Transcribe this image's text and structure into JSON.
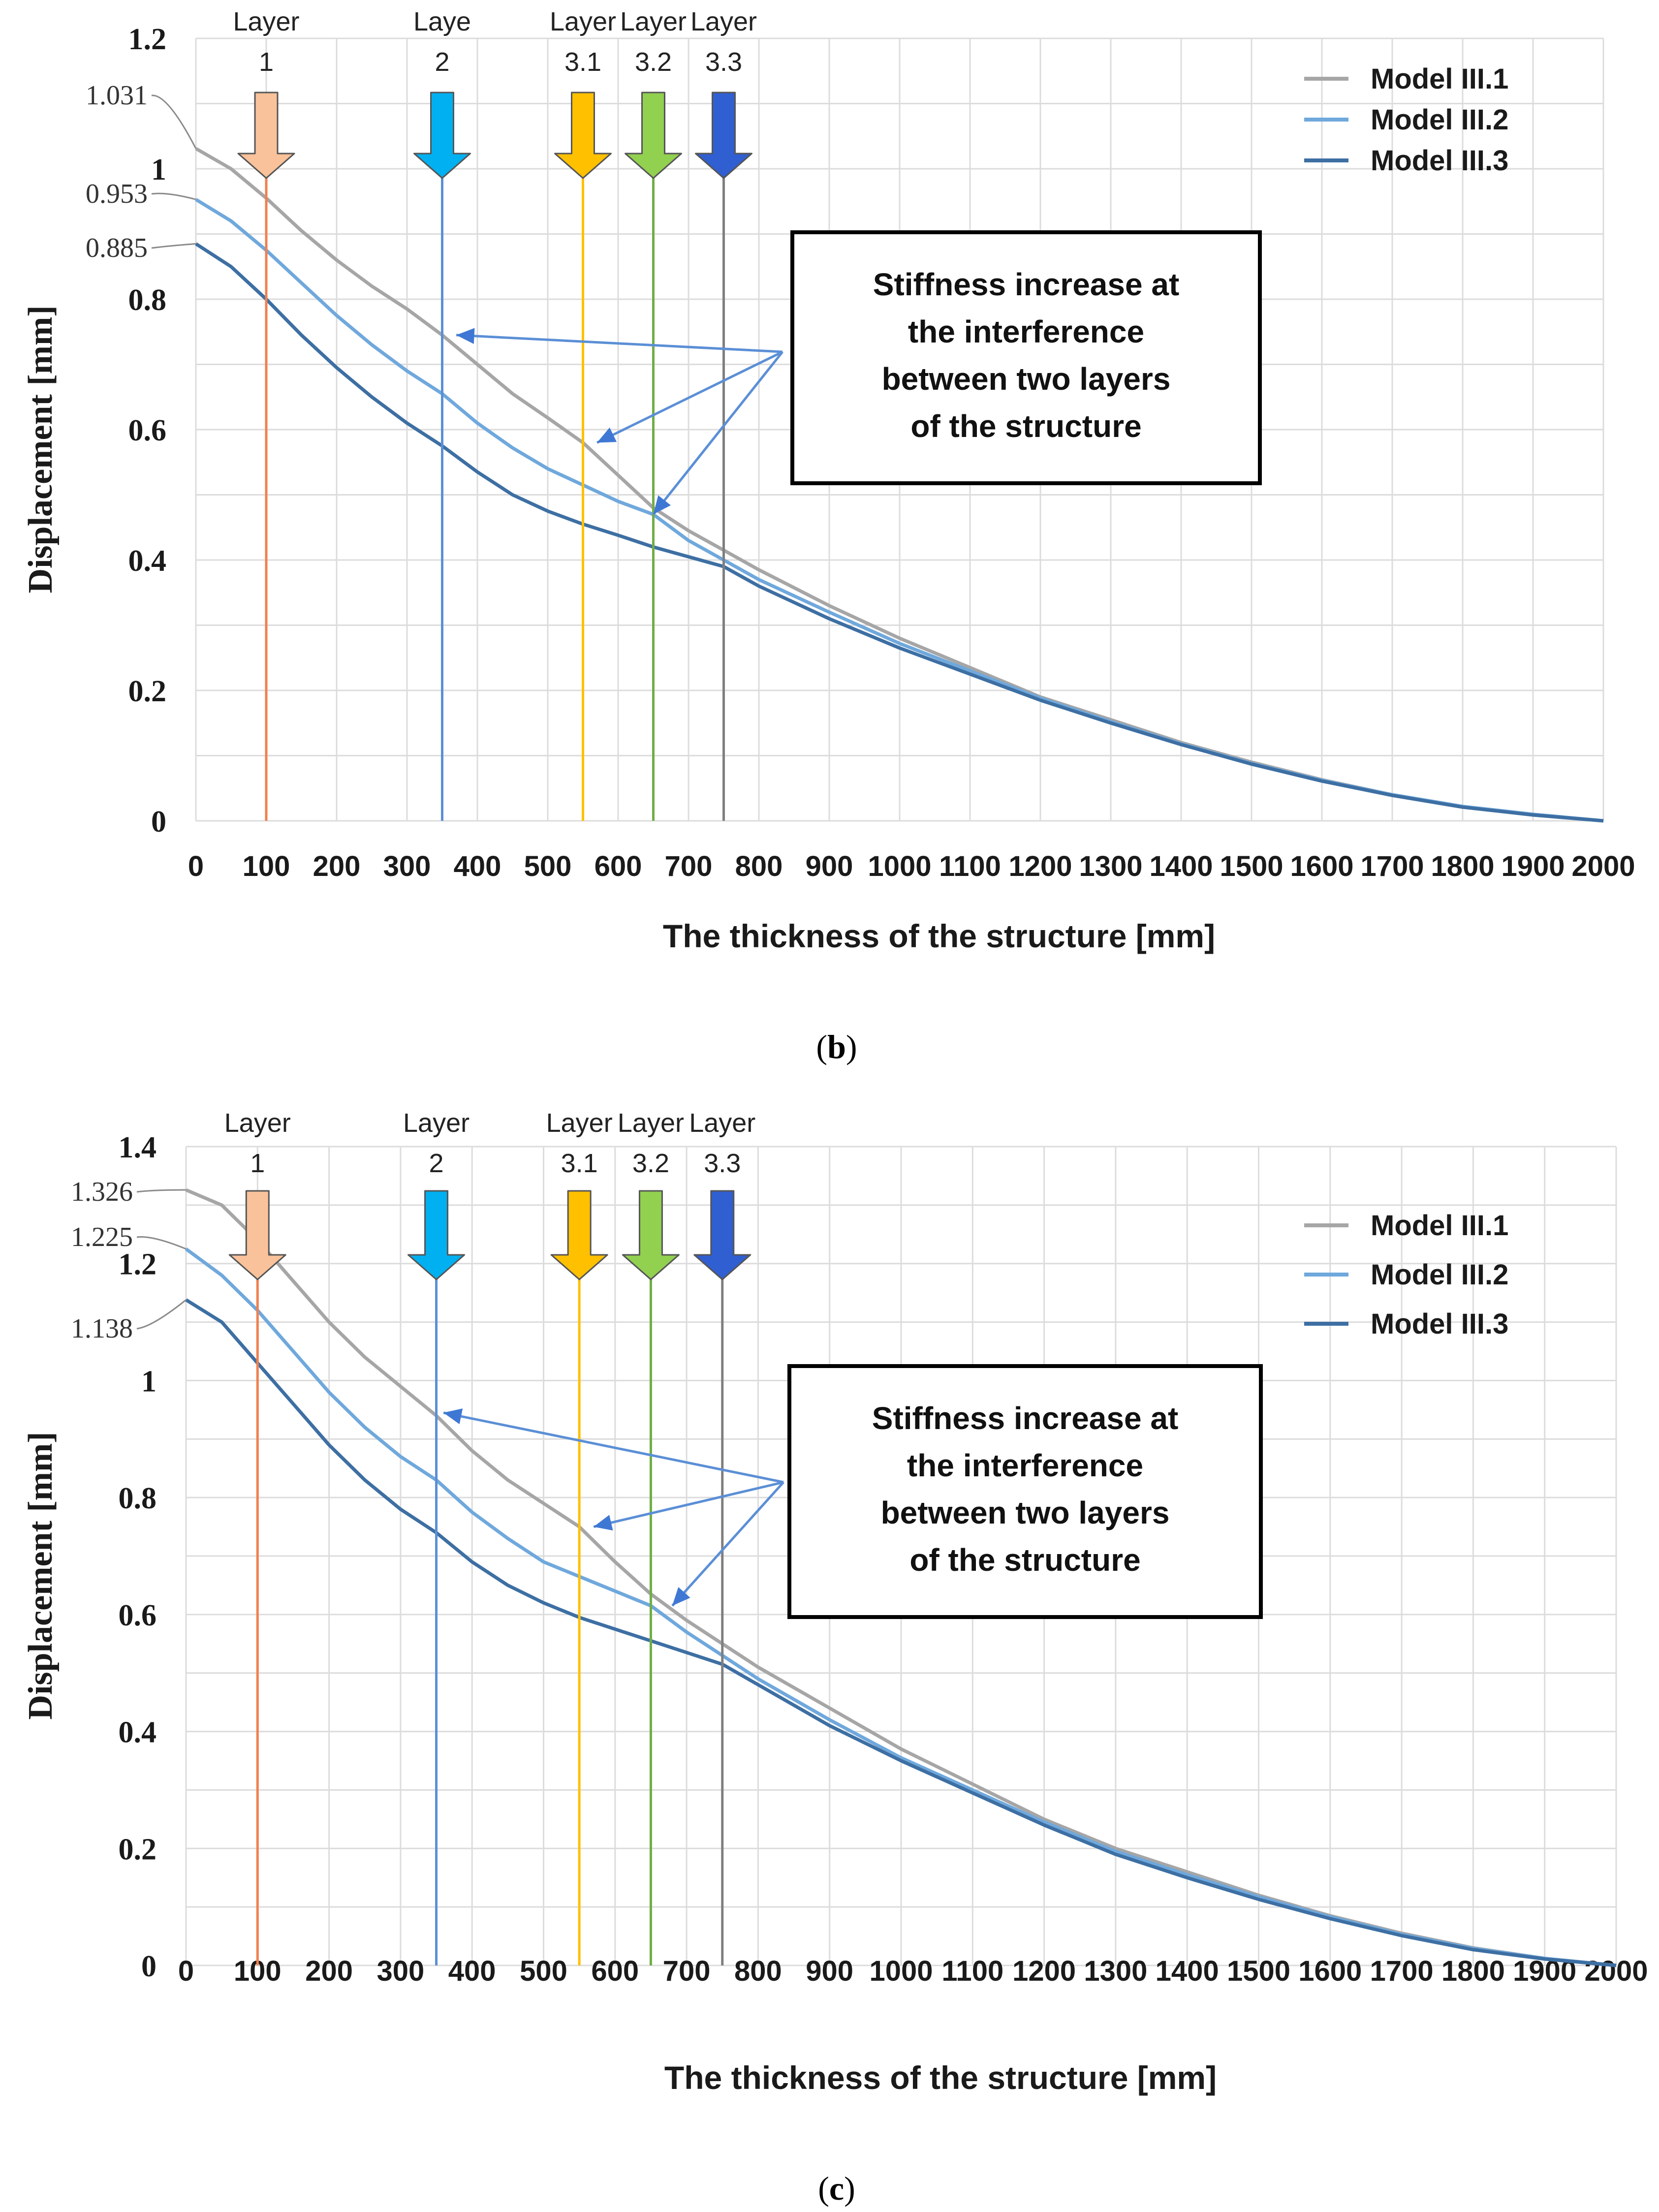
{
  "figure": {
    "panels": [
      {
        "caption": "(b)",
        "caption_letter": "b"
      },
      {
        "caption": "(c)",
        "caption_letter": "c"
      }
    ]
  },
  "chart_data": [
    {
      "type": "line",
      "panel": "b",
      "title": "",
      "xlabel": "The thickness of the structure [mm]",
      "ylabel": "Displacement [mm]",
      "xlim": [
        0,
        2000
      ],
      "ylim": [
        0,
        1.2
      ],
      "xticks": [
        0,
        100,
        200,
        300,
        400,
        500,
        600,
        700,
        800,
        900,
        1000,
        1100,
        1200,
        1300,
        1400,
        1500,
        1600,
        1700,
        1800,
        1900,
        2000
      ],
      "yticks": [
        0,
        0.2,
        0.4,
        0.6,
        0.8,
        1,
        1.2
      ],
      "ytick_labels": [
        "0",
        "0.2",
        "0.4",
        "0.6",
        "0.8",
        "1",
        "1.2"
      ],
      "grid": true,
      "legend_position": "top-right",
      "series": [
        {
          "name": "Model III.1",
          "color": "#a6a6a6",
          "x": [
            0,
            50,
            100,
            150,
            200,
            250,
            300,
            350,
            400,
            450,
            500,
            550,
            600,
            650,
            700,
            750,
            800,
            900,
            1000,
            1100,
            1200,
            1300,
            1400,
            1500,
            1600,
            1700,
            1800,
            1900,
            2000
          ],
          "y": [
            1.031,
            1.0,
            0.955,
            0.905,
            0.86,
            0.82,
            0.785,
            0.745,
            0.7,
            0.655,
            0.618,
            0.58,
            0.53,
            0.48,
            0.445,
            0.415,
            0.385,
            0.33,
            0.28,
            0.235,
            0.19,
            0.155,
            0.12,
            0.09,
            0.063,
            0.04,
            0.022,
            0.01,
            0.0
          ]
        },
        {
          "name": "Model III.2",
          "color": "#6fa8dc",
          "x": [
            0,
            50,
            100,
            150,
            200,
            250,
            300,
            350,
            400,
            450,
            500,
            550,
            600,
            650,
            700,
            750,
            800,
            900,
            1000,
            1100,
            1200,
            1300,
            1400,
            1500,
            1600,
            1700,
            1800,
            1900,
            2000
          ],
          "y": [
            0.953,
            0.92,
            0.875,
            0.825,
            0.775,
            0.73,
            0.69,
            0.655,
            0.61,
            0.572,
            0.54,
            0.515,
            0.49,
            0.47,
            0.43,
            0.4,
            0.37,
            0.32,
            0.272,
            0.23,
            0.188,
            0.152,
            0.118,
            0.088,
            0.062,
            0.04,
            0.022,
            0.01,
            0.0
          ]
        },
        {
          "name": "Model III.3",
          "color": "#3d6fa3",
          "x": [
            0,
            50,
            100,
            150,
            200,
            250,
            300,
            350,
            400,
            450,
            500,
            550,
            600,
            650,
            700,
            750,
            800,
            900,
            1000,
            1100,
            1200,
            1300,
            1400,
            1500,
            1600,
            1700,
            1800,
            1900,
            2000
          ],
          "y": [
            0.885,
            0.85,
            0.8,
            0.745,
            0.695,
            0.65,
            0.61,
            0.575,
            0.535,
            0.5,
            0.475,
            0.455,
            0.438,
            0.42,
            0.405,
            0.39,
            0.36,
            0.31,
            0.265,
            0.225,
            0.185,
            0.15,
            0.117,
            0.087,
            0.061,
            0.039,
            0.021,
            0.009,
            0.0
          ]
        }
      ],
      "start_value_labels": [
        "1.031",
        "0.953",
        "0.885"
      ],
      "layers": [
        {
          "label_line1": "Layer",
          "label_line2": "1",
          "x": 100,
          "color": "#f08050",
          "arrow_color": "#f9c29a"
        },
        {
          "label_line1": "Laye",
          "label_line2": "2",
          "x": 350,
          "color": "#5b8fd6",
          "arrow_color": "#00b0f0"
        },
        {
          "label_line1": "Layer",
          "label_line2": "3.1",
          "x": 550,
          "color": "#ffc000",
          "arrow_color": "#ffc000"
        },
        {
          "label_line1": "Layer",
          "label_line2": "3.2",
          "x": 650,
          "color": "#70ad47",
          "arrow_color": "#92d050"
        },
        {
          "label_line1": "Layer",
          "label_line2": "3.3",
          "x": 750,
          "color": "#7f7f7f",
          "arrow_color": "#2f5fd0"
        }
      ],
      "annotation": {
        "lines": [
          "Stiffness increase at",
          "the interference",
          "between two layers",
          "of the structure"
        ],
        "targets": [
          [
            370,
            0.745
          ],
          [
            570,
            0.58
          ],
          [
            650,
            0.47
          ]
        ]
      }
    },
    {
      "type": "line",
      "panel": "c",
      "title": "",
      "xlabel": "The thickness of the structure [mm]",
      "ylabel": "Displacement [mm]",
      "xlim": [
        0,
        2000
      ],
      "ylim": [
        0,
        1.4
      ],
      "xticks": [
        0,
        100,
        200,
        300,
        400,
        500,
        600,
        700,
        800,
        900,
        1000,
        1100,
        1200,
        1300,
        1400,
        1500,
        1600,
        1700,
        1800,
        1900,
        2000
      ],
      "yticks": [
        0,
        0.2,
        0.4,
        0.6,
        0.8,
        1,
        1.2,
        1.4
      ],
      "ytick_labels": [
        "0",
        "0.2",
        "0.4",
        "0.6",
        "0.8",
        "1",
        "1.2",
        "1.4"
      ],
      "grid": true,
      "legend_position": "top-right",
      "series": [
        {
          "name": "Model III.1",
          "color": "#a6a6a6",
          "x": [
            0,
            50,
            100,
            150,
            200,
            250,
            300,
            350,
            400,
            450,
            500,
            550,
            600,
            650,
            700,
            750,
            800,
            900,
            1000,
            1100,
            1200,
            1300,
            1400,
            1500,
            1600,
            1700,
            1800,
            1900,
            2000
          ],
          "y": [
            1.326,
            1.3,
            1.24,
            1.17,
            1.1,
            1.04,
            0.99,
            0.94,
            0.88,
            0.83,
            0.79,
            0.75,
            0.69,
            0.635,
            0.59,
            0.55,
            0.51,
            0.44,
            0.37,
            0.31,
            0.25,
            0.2,
            0.16,
            0.12,
            0.085,
            0.055,
            0.03,
            0.012,
            0.0
          ]
        },
        {
          "name": "Model III.2",
          "color": "#6fa8dc",
          "x": [
            0,
            50,
            100,
            150,
            200,
            250,
            300,
            350,
            400,
            450,
            500,
            550,
            600,
            650,
            700,
            750,
            800,
            900,
            1000,
            1100,
            1200,
            1300,
            1400,
            1500,
            1600,
            1700,
            1800,
            1900,
            2000
          ],
          "y": [
            1.225,
            1.18,
            1.12,
            1.05,
            0.98,
            0.92,
            0.87,
            0.83,
            0.775,
            0.73,
            0.69,
            0.665,
            0.64,
            0.615,
            0.57,
            0.53,
            0.49,
            0.42,
            0.355,
            0.3,
            0.245,
            0.195,
            0.155,
            0.117,
            0.083,
            0.053,
            0.029,
            0.012,
            0.0
          ]
        },
        {
          "name": "Model III.3",
          "color": "#3d6fa3",
          "x": [
            0,
            50,
            100,
            150,
            200,
            250,
            300,
            350,
            400,
            450,
            500,
            550,
            600,
            650,
            700,
            750,
            800,
            900,
            1000,
            1100,
            1200,
            1300,
            1400,
            1500,
            1600,
            1700,
            1800,
            1900,
            2000
          ],
          "y": [
            1.138,
            1.1,
            1.03,
            0.96,
            0.89,
            0.83,
            0.78,
            0.74,
            0.69,
            0.65,
            0.62,
            0.595,
            0.575,
            0.555,
            0.535,
            0.515,
            0.48,
            0.41,
            0.35,
            0.295,
            0.24,
            0.19,
            0.15,
            0.113,
            0.08,
            0.051,
            0.027,
            0.011,
            0.0
          ]
        }
      ],
      "start_value_labels": [
        "1.326",
        "1.225",
        "1.138"
      ],
      "layers": [
        {
          "label_line1": "Layer",
          "label_line2": "1",
          "x": 100,
          "color": "#f08050",
          "arrow_color": "#f9c29a"
        },
        {
          "label_line1": "Layer",
          "label_line2": "2",
          "x": 350,
          "color": "#5b8fd6",
          "arrow_color": "#00b0f0"
        },
        {
          "label_line1": "Layer",
          "label_line2": "3.1",
          "x": 550,
          "color": "#ffc000",
          "arrow_color": "#ffc000"
        },
        {
          "label_line1": "Layer",
          "label_line2": "3.2",
          "x": 650,
          "color": "#70ad47",
          "arrow_color": "#92d050"
        },
        {
          "label_line1": "Layer",
          "label_line2": "3.3",
          "x": 750,
          "color": "#7f7f7f",
          "arrow_color": "#2f5fd0"
        }
      ],
      "annotation": {
        "lines": [
          "Stiffness increase at",
          "the interference",
          "between two layers",
          "of the structure"
        ],
        "targets": [
          [
            360,
            0.945
          ],
          [
            570,
            0.75
          ],
          [
            680,
            0.615
          ]
        ]
      }
    }
  ]
}
